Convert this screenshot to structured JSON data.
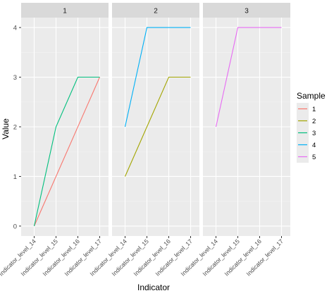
{
  "chart_data": {
    "type": "line",
    "facet_variable_values": [
      "1",
      "2",
      "3"
    ],
    "x_categories": [
      "Indicator_level_14",
      "Indicator_level_15",
      "Indicator_level_16",
      "Indicator_level_17"
    ],
    "xlabel": "Indicator",
    "ylabel": "Value",
    "ylim": [
      -0.2,
      4.2
    ],
    "y_ticks": [
      0,
      1,
      2,
      3,
      4
    ],
    "grid": true,
    "legend": {
      "title": "Sample",
      "placement": "right",
      "entries": [
        {
          "name": "1",
          "color": "#F8766D"
        },
        {
          "name": "2",
          "color": "#A3A500"
        },
        {
          "name": "3",
          "color": "#00BF7D"
        },
        {
          "name": "4",
          "color": "#00B0F6"
        },
        {
          "name": "5",
          "color": "#E76BF3"
        }
      ]
    },
    "panels": [
      {
        "label": "1",
        "series": [
          {
            "name": "1",
            "x": [
              "Indicator_level_14",
              "Indicator_level_17"
            ],
            "y": [
              0,
              3
            ]
          },
          {
            "name": "3",
            "x": [
              "Indicator_level_14",
              "Indicator_level_15",
              "Indicator_level_16",
              "Indicator_level_17"
            ],
            "y": [
              0,
              2,
              3,
              3
            ]
          }
        ]
      },
      {
        "label": "2",
        "series": [
          {
            "name": "2",
            "x": [
              "Indicator_level_14",
              "Indicator_level_16",
              "Indicator_level_17"
            ],
            "y": [
              1,
              3,
              3
            ]
          },
          {
            "name": "4",
            "x": [
              "Indicator_level_14",
              "Indicator_level_15",
              "Indicator_level_17"
            ],
            "y": [
              2,
              4,
              4
            ]
          }
        ]
      },
      {
        "label": "3",
        "series": [
          {
            "name": "5",
            "x": [
              "Indicator_level_14",
              "Indicator_level_15",
              "Indicator_level_17"
            ],
            "y": [
              2,
              4,
              4
            ]
          }
        ]
      }
    ]
  },
  "colors": {
    "panel_background": "#EBEBEB",
    "strip_background": "#D9D9D9",
    "grid_major": "#FFFFFF",
    "grid_minor": "#F2F2F2",
    "text": "#4D4D4D",
    "title_text": "#000000"
  }
}
